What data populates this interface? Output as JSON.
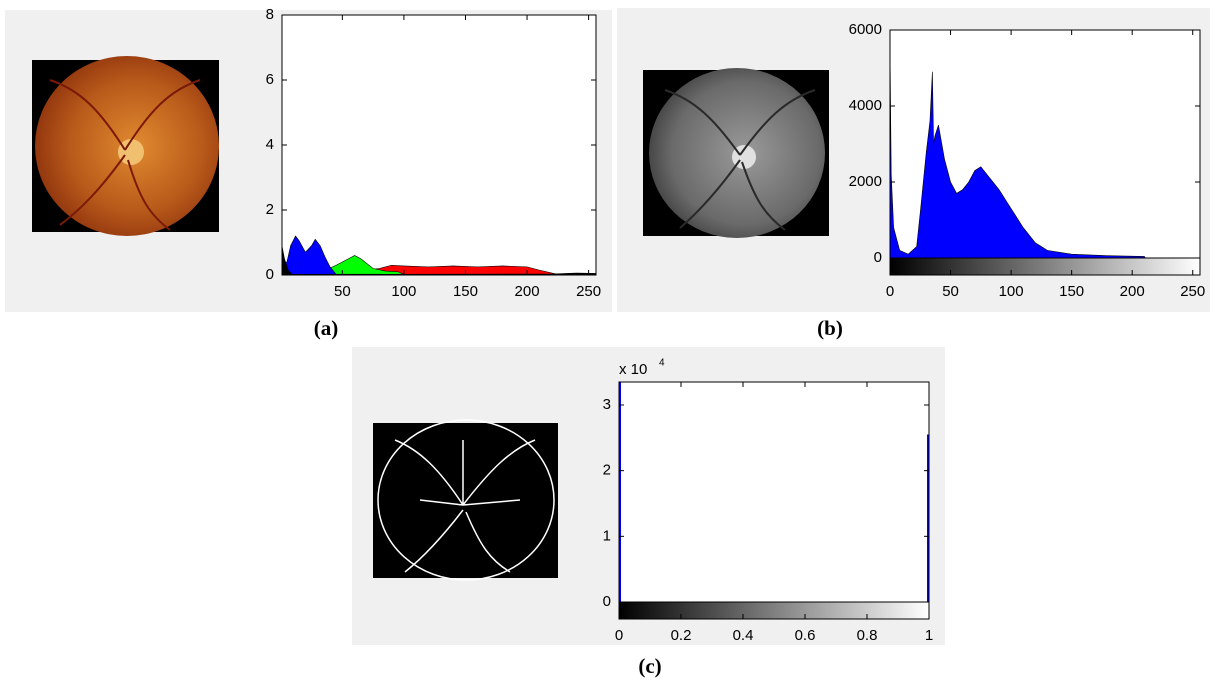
{
  "chart_data": [
    {
      "type": "area",
      "label": "(a)",
      "xlim": [
        1,
        256
      ],
      "ylim": [
        0,
        8
      ],
      "xticks": [
        50,
        100,
        150,
        200,
        250
      ],
      "yticks": [
        0,
        2,
        4,
        6,
        8
      ],
      "colorbar": false,
      "series": [
        {
          "color": "#ff0000",
          "x": [
            45,
            60,
            80,
            90,
            100,
            120,
            140,
            160,
            180,
            200,
            210,
            225
          ],
          "values": [
            0.05,
            0.12,
            0.2,
            0.3,
            0.28,
            0.25,
            0.28,
            0.25,
            0.28,
            0.25,
            0.15,
            0.02
          ]
        },
        {
          "color": "#00ff00",
          "x": [
            1,
            10,
            30,
            45,
            55,
            60,
            65,
            75,
            85,
            95,
            100
          ],
          "values": [
            0.3,
            0.1,
            0.05,
            0.3,
            0.5,
            0.6,
            0.5,
            0.2,
            0.12,
            0.1,
            0.02
          ]
        },
        {
          "color": "#0000ff",
          "x": [
            1,
            5,
            8,
            12,
            15,
            20,
            25,
            28,
            32,
            36,
            40,
            45
          ],
          "values": [
            0.3,
            0.4,
            0.9,
            1.2,
            1.05,
            0.7,
            0.9,
            1.1,
            0.9,
            0.55,
            0.25,
            0.02
          ]
        },
        {
          "color": "#000000",
          "x": [
            1,
            3,
            6,
            9,
            220,
            240,
            256
          ],
          "values": [
            0.9,
            0.5,
            0.15,
            0.02,
            0.03,
            0.06,
            0.05
          ]
        }
      ]
    },
    {
      "type": "area",
      "label": "(b)",
      "xlim": [
        0,
        256
      ],
      "ylim": [
        0,
        6000
      ],
      "xticks": [
        0,
        50,
        100,
        150,
        200,
        250
      ],
      "yticks": [
        0,
        2000,
        4000,
        6000
      ],
      "colorbar": true,
      "series": [
        {
          "color": "#0000ff",
          "x": [
            0,
            1,
            3,
            8,
            15,
            22,
            25,
            30,
            33,
            35,
            36,
            37,
            40,
            45,
            50,
            55,
            60,
            65,
            70,
            75,
            80,
            90,
            100,
            110,
            120,
            130,
            150,
            180,
            210,
            211
          ],
          "values": [
            5600,
            2200,
            800,
            200,
            100,
            300,
            1200,
            2800,
            3600,
            4900,
            3000,
            3200,
            3500,
            2600,
            2000,
            1700,
            1800,
            2000,
            2300,
            2400,
            2200,
            1800,
            1300,
            800,
            400,
            200,
            100,
            60,
            40,
            0
          ]
        }
      ]
    },
    {
      "type": "bar",
      "label": "(c)",
      "xlim": [
        0,
        1
      ],
      "ylim": [
        0,
        33500
      ],
      "xticks": [
        0,
        0.2,
        0.4,
        0.6,
        0.8,
        1
      ],
      "yticks": [
        {
          "value": 0,
          "label": "0"
        },
        {
          "value": 10000,
          "label": "1"
        },
        {
          "value": 20000,
          "label": "2"
        },
        {
          "value": 30000,
          "label": "3"
        }
      ],
      "y_multiplier": "x 10",
      "y_exponent": "4",
      "colorbar": true,
      "color": "#0000ff",
      "x": [
        0,
        1
      ],
      "values": [
        33500,
        25500
      ]
    }
  ]
}
